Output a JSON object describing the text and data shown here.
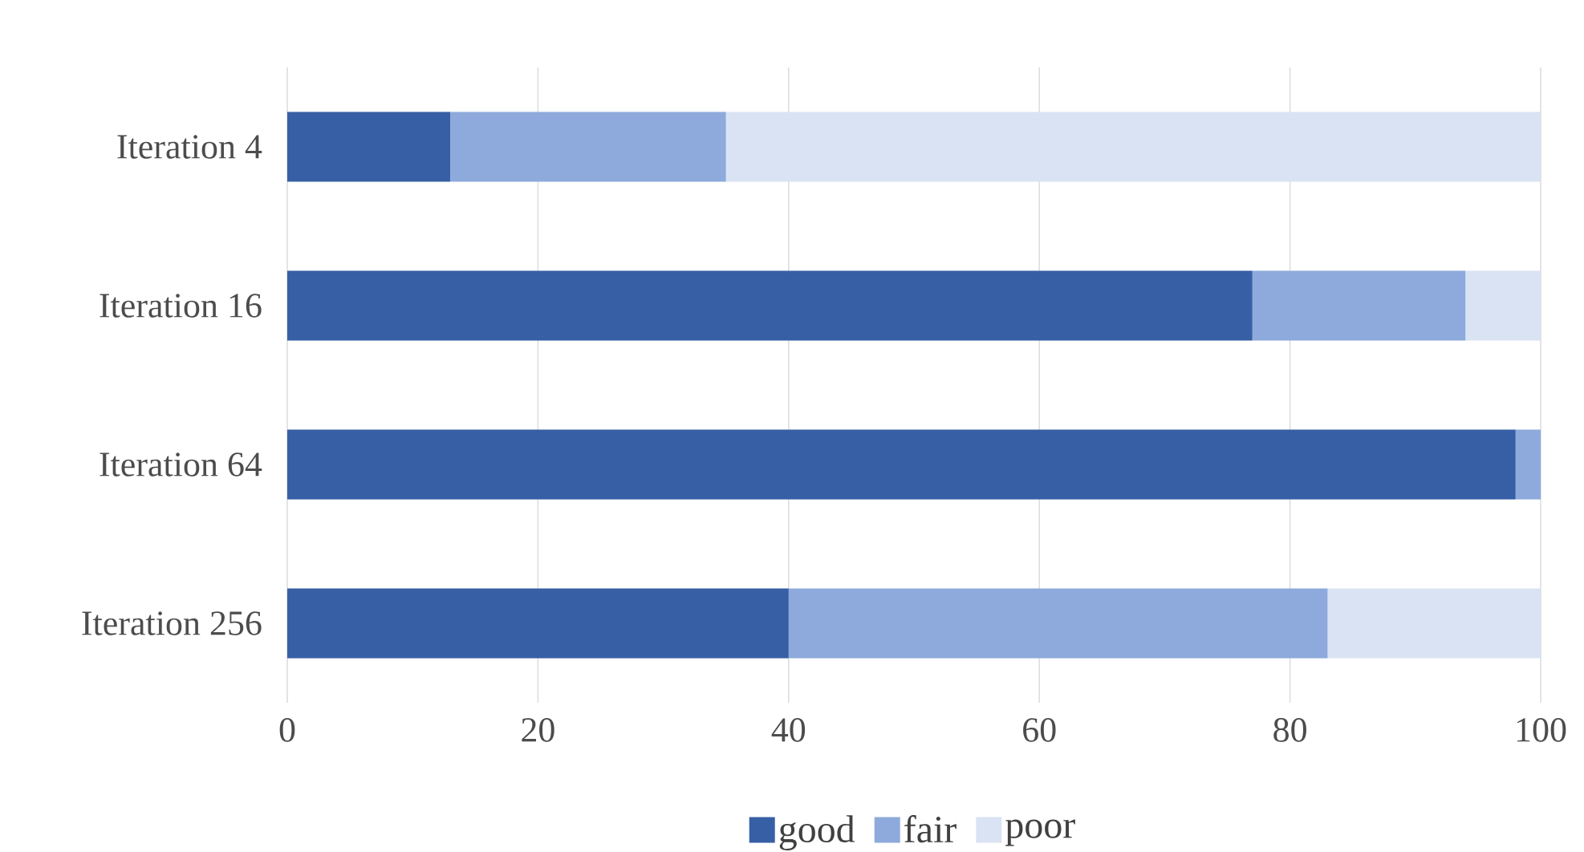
{
  "chart_data": {
    "type": "bar",
    "orientation": "horizontal",
    "stacked": true,
    "categories": [
      "Iteration 4",
      "Iteration 16",
      "Iteration 64",
      "Iteration 256"
    ],
    "series": [
      {
        "name": "good",
        "color": "#375fa5",
        "values": [
          13,
          77,
          98,
          40
        ]
      },
      {
        "name": "fair",
        "color": "#8eaadc",
        "values": [
          22,
          17,
          2,
          43
        ]
      },
      {
        "name": "poor",
        "color": "#dae3f3",
        "values": [
          65,
          6,
          0,
          17
        ]
      }
    ],
    "xlim": [
      0,
      100
    ],
    "xticks": [
      0,
      20,
      40,
      60,
      80,
      100
    ],
    "grid": "x",
    "legend": "bottom"
  }
}
